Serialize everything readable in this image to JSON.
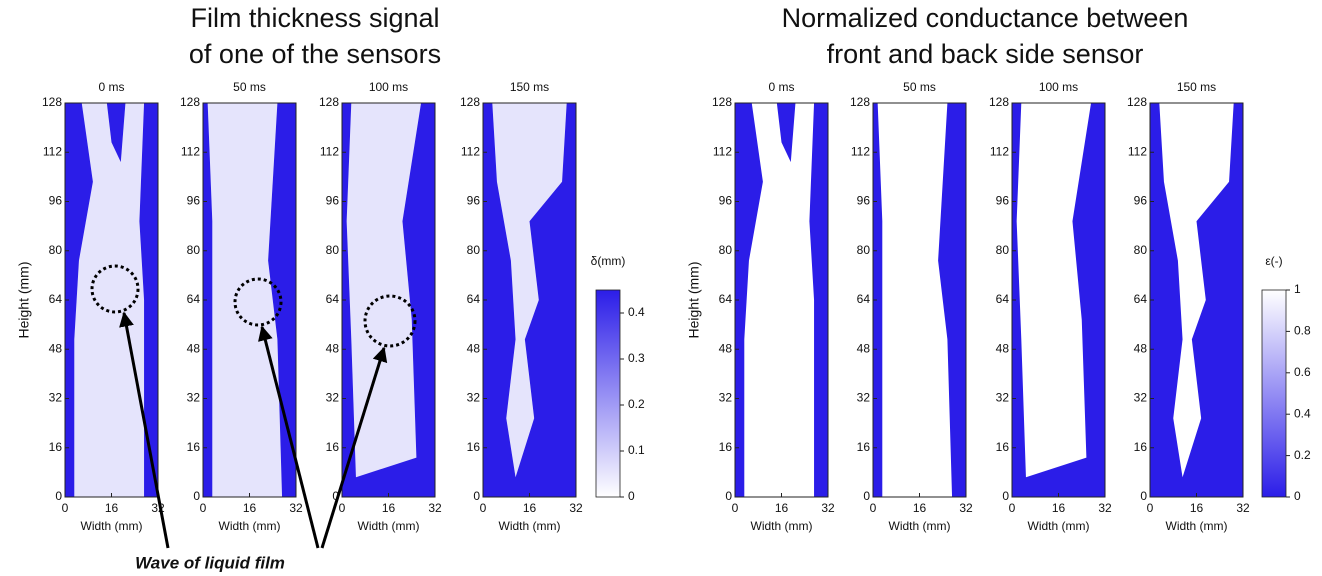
{
  "chart_data": [
    {
      "type": "heatmap",
      "title": [
        "Film thickness signal",
        "of one of the sensors"
      ],
      "panels": [
        "0 ms",
        "50 ms",
        "100 ms",
        "150 ms"
      ],
      "xlabel": "Width (mm)",
      "ylabel": "Height (mm)",
      "xlim": [
        0,
        32
      ],
      "xticks": [
        0,
        16,
        32
      ],
      "ylim": [
        0,
        128
      ],
      "yticks": [
        0,
        16,
        32,
        48,
        64,
        80,
        96,
        112,
        128
      ],
      "colorbar": {
        "label": "δ(mm)",
        "lim": [
          0,
          0.45
        ],
        "ticks": [
          0,
          0.1,
          0.2,
          0.3,
          0.4
        ],
        "cmap": [
          "#ffffff",
          "#2b1de8"
        ]
      },
      "annotation": "Wave of liquid film"
    },
    {
      "type": "heatmap",
      "title": [
        "Normalized conductance between",
        "front and back side sensor"
      ],
      "panels": [
        "0 ms",
        "50 ms",
        "100 ms",
        "150 ms"
      ],
      "xlabel": "Width (mm)",
      "ylabel": "Height (mm)",
      "xlim": [
        0,
        32
      ],
      "xticks": [
        0,
        16,
        32
      ],
      "ylim": [
        0,
        128
      ],
      "yticks": [
        0,
        16,
        32,
        48,
        64,
        80,
        96,
        112,
        128
      ],
      "colorbar": {
        "label": "ε(-)",
        "lim": [
          0,
          1
        ],
        "ticks": [
          0,
          0.2,
          0.4,
          0.6,
          0.8,
          1
        ],
        "cmap": [
          "#2b1de8",
          "#ffffff"
        ]
      }
    }
  ]
}
